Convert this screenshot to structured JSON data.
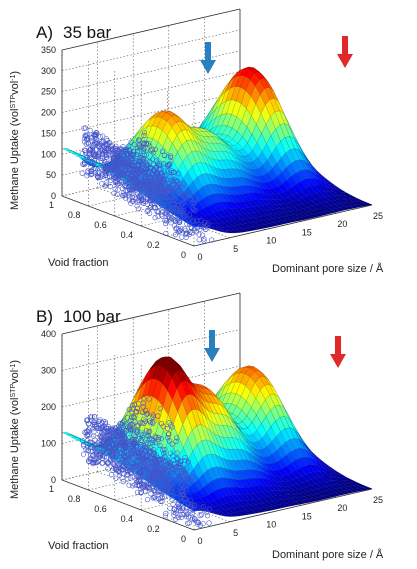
{
  "chart_data": [
    {
      "type": "surface",
      "panel": "A",
      "title_letter": "A)",
      "title": "35 bar",
      "xlabel": "Void fraction",
      "ylabel_main": "Methane Uptake (vol",
      "ylabel_sup1": "STP",
      "ylabel_mid": "vol",
      "ylabel_sup2": "-1",
      "ylabel_end": ")",
      "zlabel": "Dominant pore size / Å",
      "void_fraction_ticks": [
        "1",
        "0.8",
        "0.6",
        "0.4",
        "0.2",
        "0"
      ],
      "pore_size_ticks": [
        "0",
        "5",
        "10",
        "15",
        "20",
        "25"
      ],
      "uptake_ticks": [
        "0",
        "50",
        "100",
        "150",
        "200",
        "250",
        "300",
        "350"
      ],
      "uptake_range": [
        0,
        350
      ],
      "void_fraction_range": [
        0,
        1
      ],
      "pore_size_range": [
        0,
        25
      ],
      "peak_uptake_large_pores": 285,
      "peak_uptake_small_pores": 230,
      "arrows": [
        {
          "color": "#2a7fc1",
          "pore_size_approx": 6
        },
        {
          "color": "#e02a2a",
          "pore_size_approx": 20
        }
      ]
    },
    {
      "type": "surface",
      "panel": "B",
      "title_letter": "B)",
      "title": "100 bar",
      "xlabel": "Void fraction",
      "ylabel_main": "Methane Uptake (vol",
      "ylabel_sup1": "STP",
      "ylabel_mid": "vol",
      "ylabel_sup2": "-1",
      "ylabel_end": ")",
      "zlabel": "Dominant pore size / Å",
      "void_fraction_ticks": [
        "1",
        "0.8",
        "0.6",
        "0.4",
        "0.2",
        "0"
      ],
      "pore_size_ticks": [
        "0",
        "5",
        "10",
        "15",
        "20",
        "25"
      ],
      "uptake_ticks": [
        "0",
        "100",
        "200",
        "300",
        "400"
      ],
      "uptake_range": [
        0,
        400
      ],
      "void_fraction_range": [
        0,
        1
      ],
      "pore_size_range": [
        0,
        25
      ],
      "peak_uptake_large_pores": 270,
      "peak_uptake_small_pores": 340,
      "arrows": [
        {
          "color": "#2a7fc1",
          "pore_size_approx": 6
        },
        {
          "color": "#e02a2a",
          "pore_size_approx": 20
        }
      ]
    }
  ]
}
